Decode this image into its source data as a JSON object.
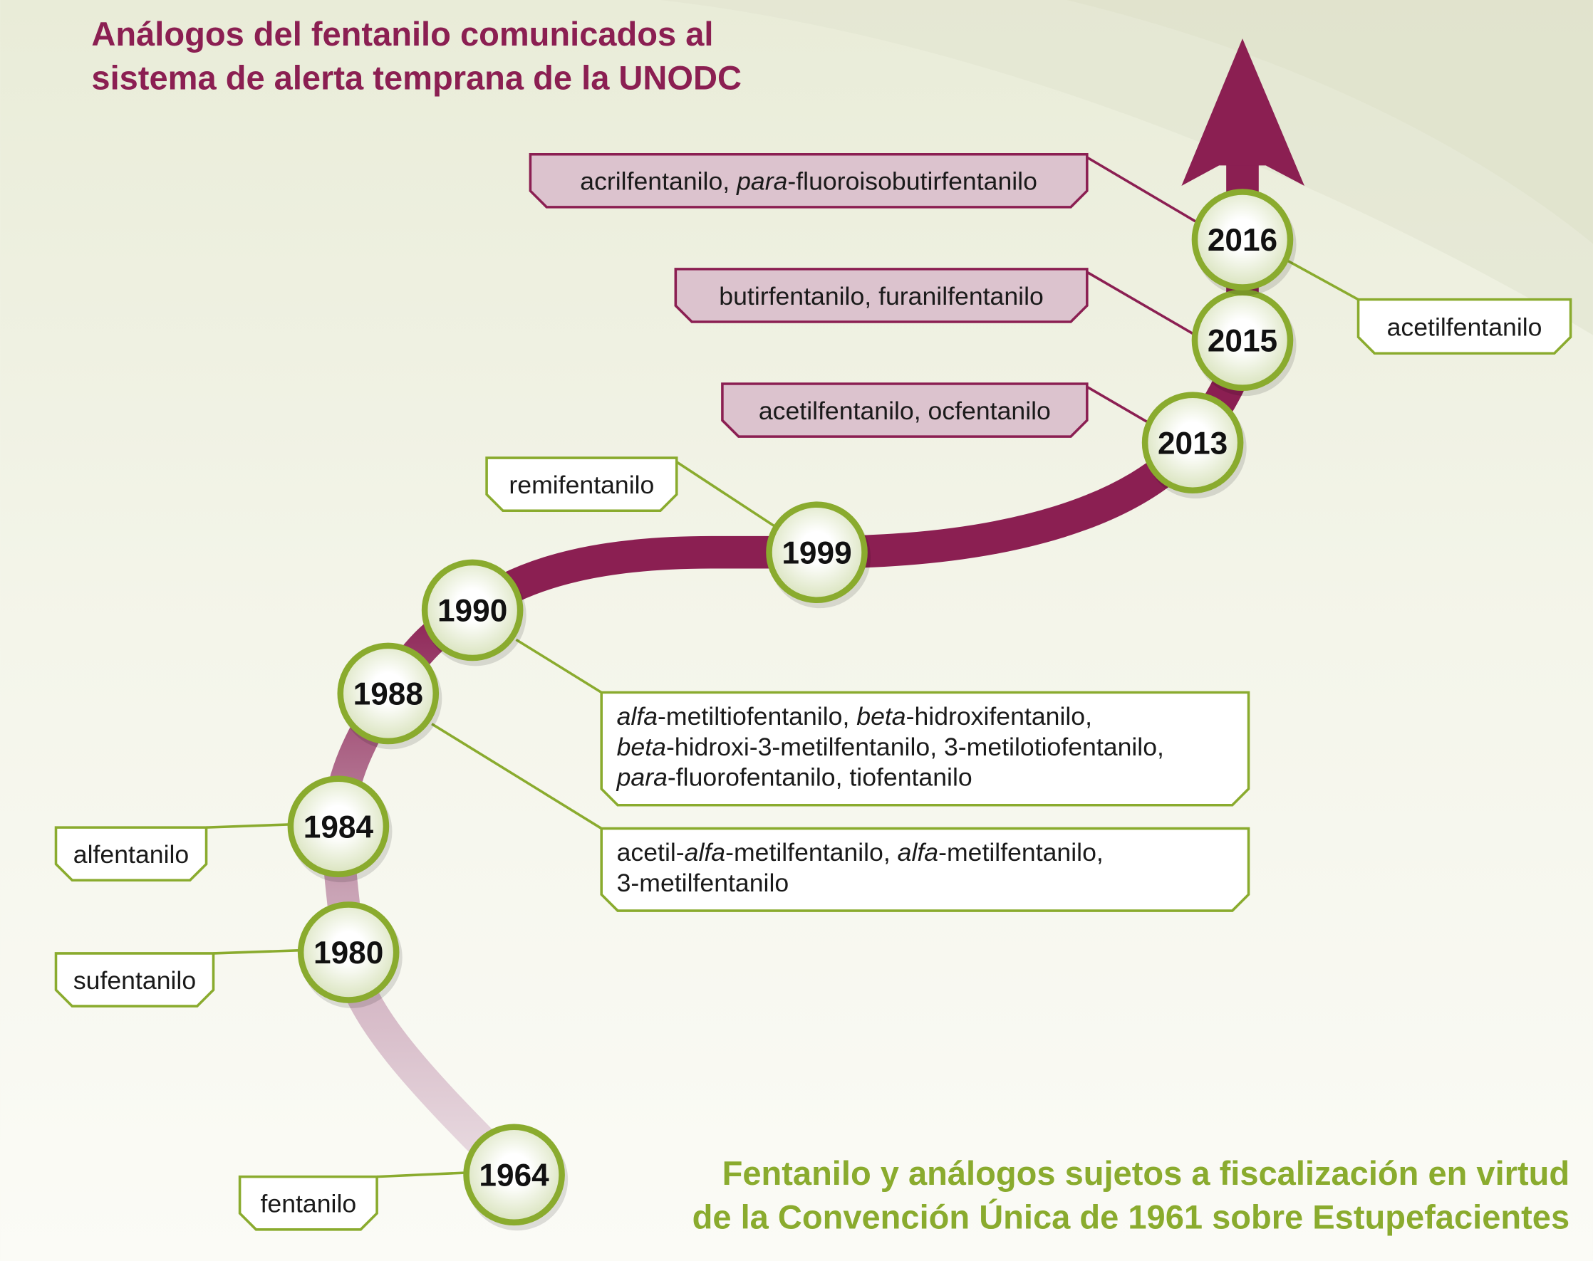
{
  "title": {
    "line1": "Análogos del fentanilo comunicados al",
    "line2": "sistema de alerta temprana de la UNODC"
  },
  "subtitle": {
    "line1": "Fentanilo y análogos sujetos a fiscalización en virtud",
    "line2": "de la Convención Única de 1961 sobre Estupefacientes"
  },
  "colors": {
    "maroon": "#8b1f52",
    "green": "#8aab2e",
    "pink_box": "#dcc3ce"
  },
  "timeline": [
    {
      "year": "1964",
      "group": "fiscalizados",
      "labels": [
        [
          {
            "t": "fentanilo"
          }
        ]
      ]
    },
    {
      "year": "1980",
      "group": "fiscalizados",
      "labels": [
        [
          {
            "t": "sufentanilo"
          }
        ]
      ]
    },
    {
      "year": "1984",
      "group": "fiscalizados",
      "labels": [
        [
          {
            "t": "alfentanilo"
          }
        ]
      ]
    },
    {
      "year": "1988",
      "group": "fiscalizados",
      "labels": [
        [
          {
            "t": "acetil-"
          },
          {
            "t": "alfa",
            "i": true
          },
          {
            "t": "-metilfentanilo, "
          },
          {
            "t": "alfa",
            "i": true
          },
          {
            "t": "-metilfentanilo,"
          }
        ],
        [
          {
            "t": "3-metilfentanilo"
          }
        ]
      ]
    },
    {
      "year": "1990",
      "group": "fiscalizados",
      "labels": [
        [
          {
            "t": "alfa",
            "i": true
          },
          {
            "t": "-metiltiofentanilo, "
          },
          {
            "t": "beta",
            "i": true
          },
          {
            "t": "-hidroxifentanilo,"
          }
        ],
        [
          {
            "t": "beta",
            "i": true
          },
          {
            "t": "-hidroxi-3-metilfentanilo, 3-metilotiofentanilo,"
          }
        ],
        [
          {
            "t": "para",
            "i": true
          },
          {
            "t": "-fluorofentanilo, tiofentanilo"
          }
        ]
      ]
    },
    {
      "year": "1999",
      "group": "fiscalizados",
      "labels": [
        [
          {
            "t": "remifentanilo"
          }
        ]
      ]
    },
    {
      "year": "2013",
      "group": "alerta",
      "labels": [
        [
          {
            "t": "acetilfentanilo, ocfentanilo"
          }
        ]
      ]
    },
    {
      "year": "2015",
      "group": "alerta",
      "labels": [
        [
          {
            "t": "butirfentanilo, furanilfentanilo"
          }
        ]
      ]
    },
    {
      "year": "2016",
      "group": "alerta",
      "labels": [
        [
          {
            "t": "acrilfentanilo, "
          },
          {
            "t": "para",
            "i": true
          },
          {
            "t": "-fluoroisobutirfentanilo"
          }
        ]
      ]
    },
    {
      "year": "2016",
      "group": "fiscalizados",
      "labels": [
        [
          {
            "t": "acetilfentanilo"
          }
        ]
      ]
    }
  ]
}
